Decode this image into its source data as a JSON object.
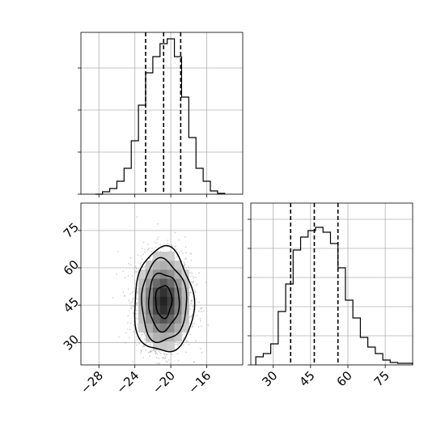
{
  "chart_data": [
    {
      "panel": "marginal-x",
      "type": "histogram",
      "title": "",
      "xlabel": "",
      "ylabel": "",
      "xlim": [
        -30,
        -12
      ],
      "ylim": [
        0,
        1.0
      ],
      "grid": true,
      "bin_edges": [
        -28.4,
        -27.6,
        -26.8,
        -26.0,
        -25.2,
        -24.4,
        -23.6,
        -22.8,
        -22.0,
        -21.2,
        -20.4,
        -19.6,
        -18.8,
        -18.0,
        -17.2,
        -16.4,
        -15.6,
        -14.8,
        -14.0
      ],
      "counts": [
        0.0,
        0.015,
        0.035,
        0.08,
        0.16,
        0.33,
        0.55,
        0.75,
        0.85,
        0.93,
        0.96,
        0.85,
        0.6,
        0.35,
        0.16,
        0.08,
        0.02,
        0.005
      ],
      "quantile_lines": [
        -22.8,
        -20.8,
        -18.9
      ]
    },
    {
      "panel": "marginal-y",
      "type": "histogram",
      "title": "",
      "xlabel": "",
      "ylabel": "",
      "xlim": [
        21,
        86
      ],
      "ylim": [
        0,
        1.0
      ],
      "grid": true,
      "bin_edges": [
        23,
        26,
        29,
        32,
        35,
        38,
        41,
        44,
        47,
        50,
        53,
        56,
        59,
        62,
        65,
        68,
        71,
        74,
        77,
        80,
        83,
        86
      ],
      "counts": [
        0.05,
        0.07,
        0.13,
        0.33,
        0.5,
        0.71,
        0.79,
        0.83,
        0.85,
        0.82,
        0.75,
        0.6,
        0.4,
        0.29,
        0.17,
        0.11,
        0.07,
        0.03,
        0.015,
        0.01,
        0.01
      ],
      "quantile_lines": [
        37,
        46.5,
        56
      ]
    },
    {
      "panel": "joint",
      "type": "scatter",
      "title": "",
      "xlabel": "",
      "ylabel": "",
      "xlim": [
        -30,
        -12
      ],
      "ylim": [
        21,
        86
      ],
      "grid": true,
      "x_ticks": [
        "−28",
        "−24",
        "−20",
        "−16"
      ],
      "x_tick_values": [
        -28,
        -24,
        -20,
        -16
      ],
      "y_ticks": [
        "30",
        "45",
        "60",
        "75"
      ],
      "y_tick_values": [
        30,
        45,
        60,
        75
      ],
      "center": [
        -20.8,
        46.5
      ],
      "sigma": [
        1.5,
        9.5
      ],
      "contours": [
        {
          "level": 0.5,
          "rx": 0.9,
          "ry": 6.5
        },
        {
          "level": 1.0,
          "rx": 1.7,
          "ry": 11.5
        },
        {
          "level": 1.5,
          "rx": 2.5,
          "ry": 16.5
        },
        {
          "level": 2.0,
          "rx": 3.3,
          "ry": 21.0
        }
      ]
    }
  ],
  "marginal_x_ticks": {
    "x_ticks": [
      "−28",
      "−24",
      "−20",
      "−16"
    ],
    "x_tick_values": [
      -28,
      -24,
      -20,
      -16
    ]
  },
  "marginal_y_ticks": {
    "x_ticks": [
      "30",
      "45",
      "60",
      "75"
    ],
    "x_tick_values": [
      30,
      45,
      60,
      75
    ]
  }
}
